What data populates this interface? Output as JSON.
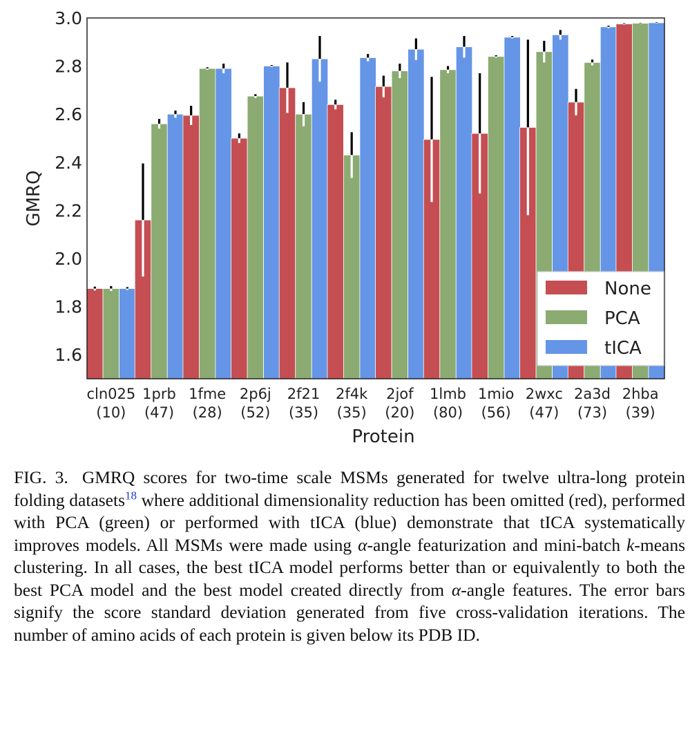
{
  "chart_data": {
    "type": "bar",
    "ylabel": "GMRQ",
    "xlabel": "Protein",
    "ylim": [
      1.5,
      3.0
    ],
    "yticks": [
      "1.6",
      "1.8",
      "2.0",
      "2.2",
      "2.4",
      "2.6",
      "2.8",
      "3.0"
    ],
    "categories": [
      {
        "id": "cln025",
        "aa": "(10)"
      },
      {
        "id": "1prb",
        "aa": "(47)"
      },
      {
        "id": "1fme",
        "aa": "(28)"
      },
      {
        "id": "2p6j",
        "aa": "(52)"
      },
      {
        "id": "2f21",
        "aa": "(35)"
      },
      {
        "id": "2f4k",
        "aa": "(35)"
      },
      {
        "id": "2jof",
        "aa": "(20)"
      },
      {
        "id": "1lmb",
        "aa": "(80)"
      },
      {
        "id": "1mio",
        "aa": "(56)"
      },
      {
        "id": "2wxc",
        "aa": "(47)"
      },
      {
        "id": "2a3d",
        "aa": "(73)"
      },
      {
        "id": "2hba",
        "aa": "(39)"
      }
    ],
    "series": [
      {
        "name": "None",
        "color": "#c44e52",
        "values": [
          1.875,
          2.16,
          2.595,
          2.5,
          2.71,
          2.64,
          2.715,
          2.495,
          2.52,
          2.545,
          2.65,
          2.975
        ],
        "errors": [
          0.008,
          0.235,
          0.04,
          0.02,
          0.105,
          0.02,
          0.045,
          0.26,
          0.25,
          0.365,
          0.055,
          0.003
        ]
      },
      {
        "name": "PCA",
        "color": "#8bab72",
        "values": [
          1.875,
          2.56,
          2.79,
          2.675,
          2.6,
          2.43,
          2.78,
          2.785,
          2.84,
          2.86,
          2.815,
          2.978
        ],
        "errors": [
          0.01,
          0.02,
          0.005,
          0.008,
          0.05,
          0.095,
          0.03,
          0.015,
          0.005,
          0.045,
          0.012,
          0.002
        ]
      },
      {
        "name": "tICA",
        "color": "#6595e6",
        "values": [
          1.875,
          2.6,
          2.79,
          2.8,
          2.83,
          2.835,
          2.87,
          2.88,
          2.92,
          2.93,
          2.963,
          2.98
        ],
        "errors": [
          0.006,
          0.015,
          0.02,
          0.004,
          0.095,
          0.015,
          0.045,
          0.045,
          0.005,
          0.02,
          0.005,
          0.002
        ]
      }
    ],
    "legend_position": "lower-right",
    "grid": false
  },
  "caption": {
    "label": "FIG. 3.",
    "part1": "GMRQ scores for two-time scale MSMs generated for twelve ultra-long protein folding datasets",
    "ref": "18",
    "part2": " where additional dimensionality reduction has been omitted (red), performed with PCA (green) or performed with tICA (blue) demonstrate that tICA systematically improves models. All MSMs were made using ",
    "alpha1": "α",
    "part3": "-angle featurization and mini-batch ",
    "k": "k",
    "part4": "-means clustering. In all cases, the best tICA model performs better than or equivalently to both the best PCA model and the best model created directly from ",
    "alpha2": "α",
    "part5": "-angle features. The error bars signify the score standard deviation generated from five cross-validation iterations. The number of amino acids of each protein is given below its PDB ID."
  }
}
